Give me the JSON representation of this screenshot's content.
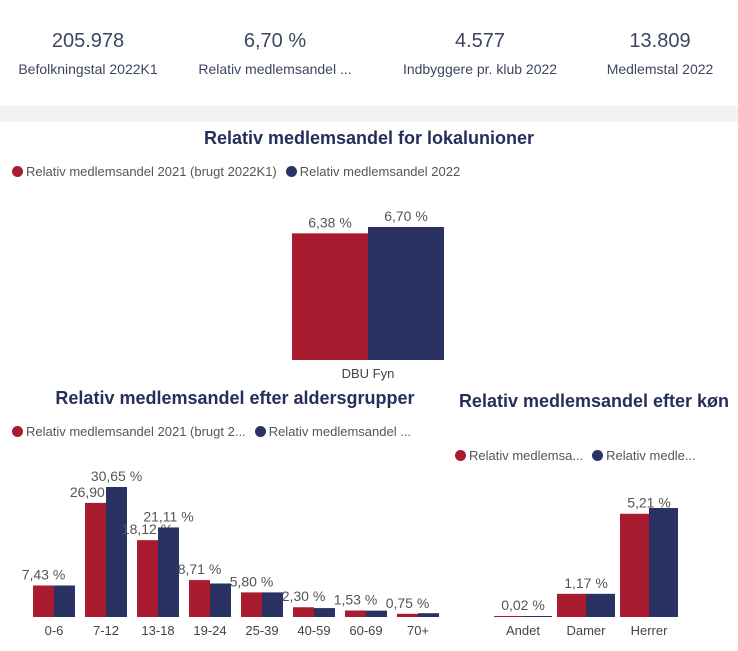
{
  "colors": {
    "series2021": "#a91b2e",
    "series2022": "#2a3264",
    "title": "#252f5a"
  },
  "kpis": [
    {
      "value": "205.978",
      "label": "Befolkningstal 2022K1"
    },
    {
      "value": "6,70 %",
      "label": "Relativ medlemsandel ..."
    },
    {
      "value": "4.577",
      "label": "Indbyggere pr. klub 2022"
    },
    {
      "value": "13.809",
      "label": "Medlemstal 2022"
    }
  ],
  "chart_data": [
    {
      "type": "bar",
      "title": "Relativ medlemsandel for lokalunioner",
      "legend": [
        "Relativ medlemsandel 2021 (brugt 2022K1)",
        "Relativ medlemsandel 2022"
      ],
      "categories": [
        "DBU Fyn"
      ],
      "series": [
        {
          "name": "Relativ medlemsandel 2021 (brugt 2022K1)",
          "values": [
            6.38
          ],
          "labels": [
            "6,38 %"
          ]
        },
        {
          "name": "Relativ medlemsandel 2022",
          "values": [
            6.7
          ],
          "labels": [
            "6,70 %"
          ]
        }
      ]
    },
    {
      "type": "bar",
      "title": "Relativ medlemsandel efter aldersgrupper",
      "legend": [
        "Relativ medlemsandel 2021 (brugt 2...",
        "Relativ medlemsandel ..."
      ],
      "categories": [
        "0-6",
        "7-12",
        "13-18",
        "19-24",
        "25-39",
        "40-59",
        "60-69",
        "70+"
      ],
      "series": [
        {
          "name": "Relativ medlemsandel 2021 (brugt 2...",
          "values": [
            7.43,
            26.9,
            18.12,
            8.71,
            5.8,
            2.3,
            1.53,
            0.75
          ],
          "labels": [
            "7,43 %",
            "26,90 %",
            "18,12 %",
            "8,71 %",
            "5,80 %",
            "2,30 %",
            "1,53 %",
            "0,75 %"
          ]
        },
        {
          "name": "Relativ medlemsandel ...",
          "values": [
            7.43,
            30.65,
            21.11,
            7.9,
            5.8,
            2.1,
            1.5,
            0.9
          ],
          "labels": [
            "",
            "30,65 %",
            "21,11 %",
            "",
            "",
            "",
            "",
            ""
          ]
        }
      ]
    },
    {
      "type": "bar",
      "title": "Relativ medlemsandel efter køn",
      "legend": [
        "Relativ medlemsa...",
        "Relativ medle..."
      ],
      "categories": [
        "Andet",
        "Damer",
        "Herrer"
      ],
      "series": [
        {
          "name": "Relativ medlemsa...",
          "values": [
            0.02,
            1.17,
            5.21
          ],
          "labels": [
            "0,02 %",
            "1,17 %",
            "5,21 %"
          ]
        },
        {
          "name": "Relativ medle...",
          "values": [
            0.02,
            1.17,
            5.5
          ],
          "labels": [
            "",
            "",
            ""
          ]
        }
      ]
    }
  ]
}
